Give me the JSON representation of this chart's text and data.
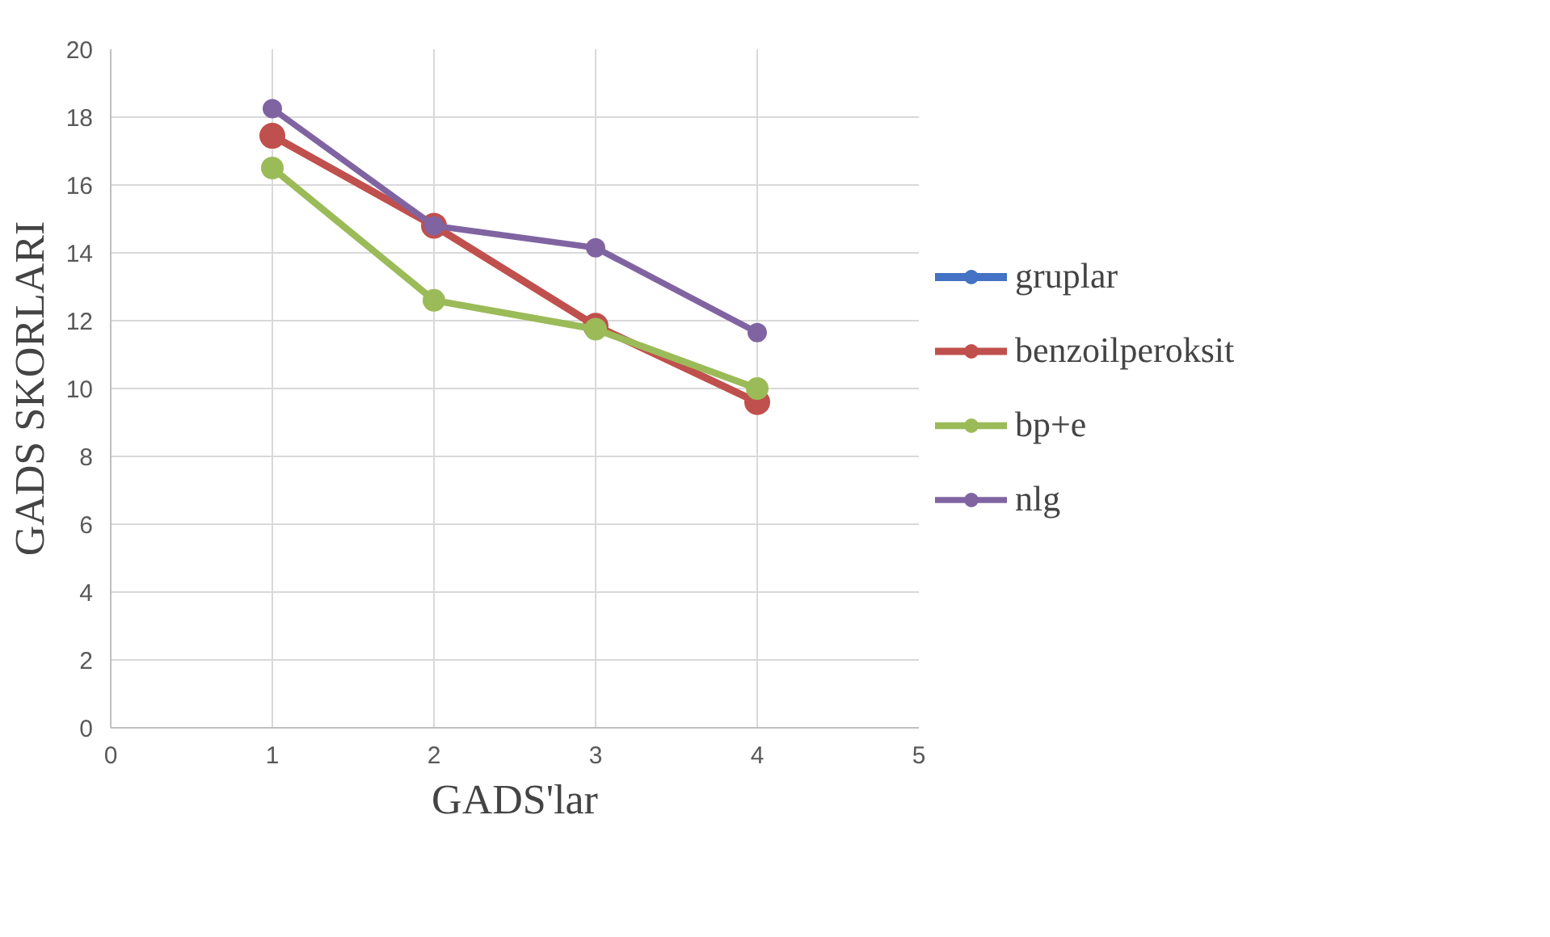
{
  "chart_data": {
    "type": "line",
    "xlabel": "GADS'lar",
    "ylabel": "GADS SKORLARI",
    "x": [
      1,
      2,
      3,
      4
    ],
    "series": [
      {
        "name": "gruplar",
        "color": "#4472c4",
        "values": [
          null,
          null,
          null,
          null
        ]
      },
      {
        "name": "benzoilperoksit",
        "color": "#c0504d",
        "values": [
          17.45,
          14.8,
          11.85,
          9.6
        ]
      },
      {
        "name": "bp+e",
        "color": "#9bbb59",
        "values": [
          16.5,
          12.6,
          11.75,
          10.0
        ]
      },
      {
        "name": "nlg",
        "color": "#8064a2",
        "values": [
          18.25,
          14.8,
          14.15,
          11.65
        ]
      }
    ],
    "xlim": [
      0,
      5
    ],
    "xticks": [
      0,
      1,
      2,
      3,
      4,
      5
    ],
    "ylim": [
      0,
      20
    ],
    "yticks": [
      0,
      2,
      4,
      6,
      8,
      10,
      12,
      14,
      16,
      18,
      20
    ],
    "grid": true,
    "legend": "right",
    "marker": "circle",
    "line_style": "solid"
  }
}
